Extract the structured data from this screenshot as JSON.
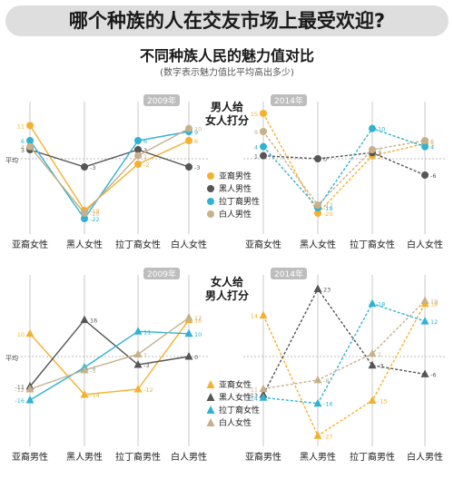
{
  "title": "哪个种族的人在交友市场上最受欢迎?",
  "subtitle": "不同种族人民的魅力值对比",
  "note": "(数字表示魅力值比平均高出多少)",
  "colors": {
    "asian": "#f5b02e",
    "black": "#555555",
    "latino": "#2fb2d4",
    "white": "#c7b08a"
  },
  "chart_data": [
    {
      "type": "line",
      "panel": "top-left",
      "year": "2009年",
      "ylim": [
        -25,
        15
      ],
      "baseline_label": "平均",
      "categories": [
        "亚裔女性",
        "黑人女性",
        "拉丁裔女性",
        "白人女性"
      ],
      "series": [
        {
          "name": "亚裔男性",
          "values": [
            11,
            -19,
            -2,
            6
          ]
        },
        {
          "name": "黑人男性",
          "values": [
            3,
            -3,
            3,
            -3
          ]
        },
        {
          "name": "拉丁裔男性",
          "values": [
            6,
            -22,
            6,
            9
          ]
        },
        {
          "name": "白人男性",
          "values": [
            4,
            -20,
            1,
            10
          ]
        }
      ]
    },
    {
      "type": "line",
      "panel": "top-right",
      "year": "2014年",
      "ylim": [
        -25,
        15
      ],
      "baseline_label": "",
      "categories": [
        "亚裔女性",
        "黑人女性",
        "拉丁裔女性",
        "白人女性"
      ],
      "series": [
        {
          "name": "亚裔男性",
          "values": [
            15,
            -20,
            1,
            5
          ]
        },
        {
          "name": "黑人男性",
          "values": [
            1,
            0,
            2,
            -6
          ]
        },
        {
          "name": "拉丁裔男性",
          "values": [
            4,
            -18,
            10,
            4
          ]
        },
        {
          "name": "白人男性",
          "values": [
            9,
            -17,
            3,
            6
          ]
        }
      ]
    },
    {
      "type": "line",
      "panel": "bottom-left",
      "year": "2009年",
      "ylim": [
        -25,
        25
      ],
      "baseline_label": "平均",
      "categories": [
        "亚裔男性",
        "黑人男性",
        "拉丁裔男性",
        "白人男性"
      ],
      "series": [
        {
          "name": "亚裔女性",
          "values": [
            10,
            -14,
            -12,
            16
          ]
        },
        {
          "name": "黑人女性",
          "values": [
            -11,
            16,
            -3,
            0
          ]
        },
        {
          "name": "拉丁裔女性",
          "values": [
            -16,
            -4,
            11,
            10
          ]
        },
        {
          "name": "白人女性",
          "values": [
            -12,
            -5,
            1,
            17
          ]
        }
      ]
    },
    {
      "type": "line",
      "panel": "bottom-right",
      "year": "2014年",
      "ylim": [
        -30,
        25
      ],
      "baseline_label": "",
      "categories": [
        "亚裔男性",
        "黑人男性",
        "拉丁裔男性",
        "白人男性"
      ],
      "series": [
        {
          "name": "亚裔女性",
          "values": [
            14,
            -27,
            -15,
            18
          ]
        },
        {
          "name": "黑人女性",
          "values": [
            -13,
            23,
            -3,
            -6
          ]
        },
        {
          "name": "拉丁裔女性",
          "values": [
            -14,
            -16,
            18,
            12
          ]
        },
        {
          "name": "白人女性",
          "values": [
            -11,
            -8,
            1,
            19
          ]
        }
      ]
    }
  ],
  "legends": [
    {
      "title_lines": [
        "男人给",
        "女人打分"
      ],
      "marker": "circle",
      "items": [
        "亚裔男性",
        "黑人男性",
        "拉丁裔男性",
        "白人男性"
      ]
    },
    {
      "title_lines": [
        "女人给",
        "男人打分"
      ],
      "marker": "triangle",
      "items": [
        "亚裔女性",
        "黑人女性",
        "拉丁裔女性",
        "白人女性"
      ]
    }
  ]
}
